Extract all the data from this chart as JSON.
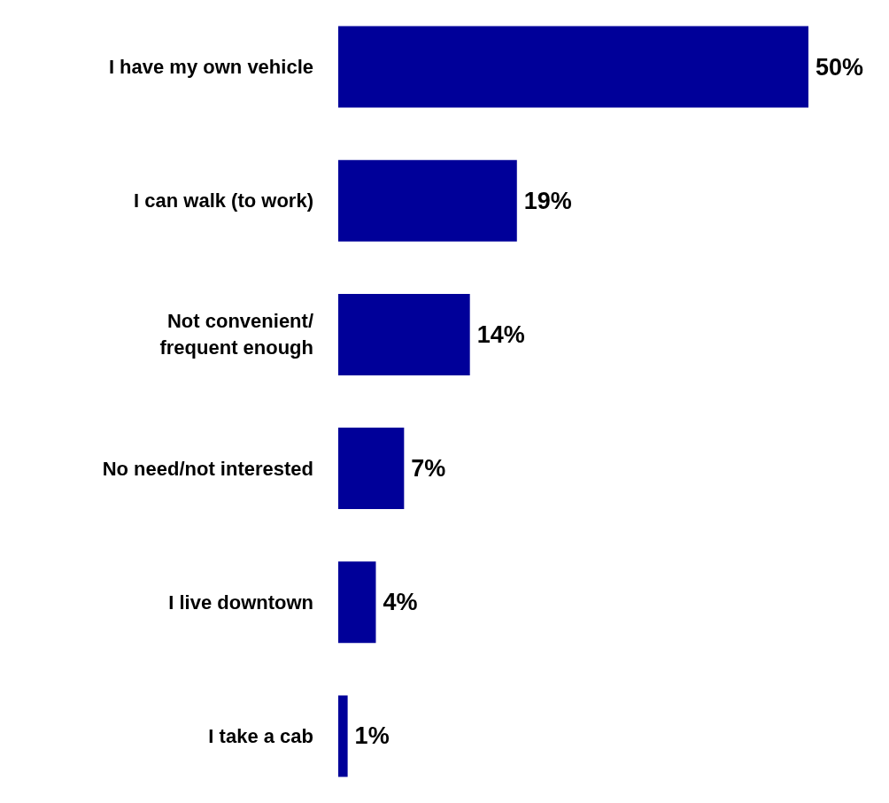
{
  "chart_data": {
    "type": "bar",
    "orientation": "horizontal",
    "categories": [
      "I have my own vehicle",
      "I can walk (to work)",
      "Not convenient/\nfrequent enough",
      "No need/not interested",
      "I live downtown",
      "I take a cab"
    ],
    "values": [
      50,
      19,
      14,
      7,
      4,
      1
    ],
    "value_labels": [
      "50%",
      "19%",
      "14%",
      "7%",
      "4%",
      "1%"
    ],
    "color": "#000099"
  }
}
